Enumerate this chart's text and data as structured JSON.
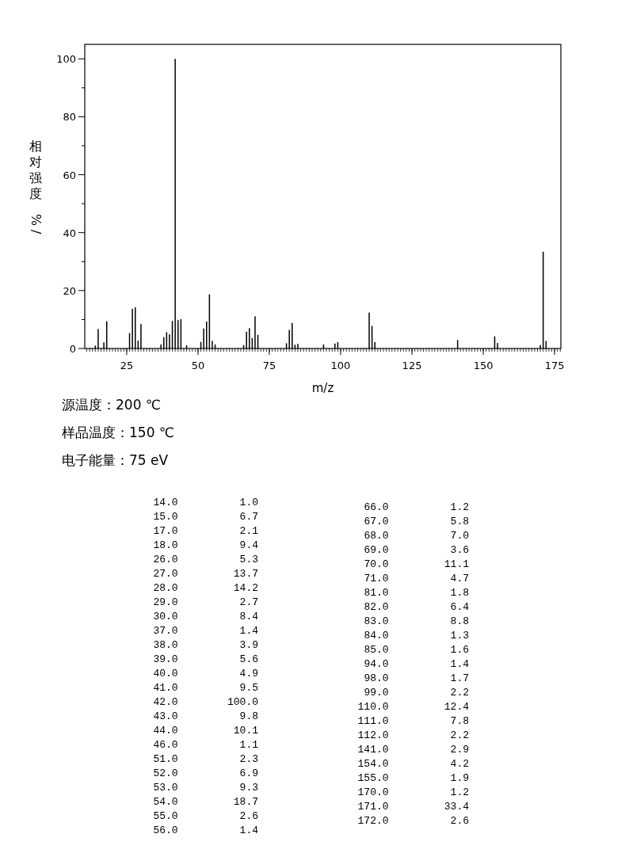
{
  "chart_data": {
    "type": "bar",
    "xlabel": "m/z",
    "ylabel": "相对强度%/",
    "color": "#000000",
    "x": [
      14,
      15,
      17,
      18,
      26,
      27,
      28,
      29,
      30,
      37,
      38,
      39,
      40,
      41,
      42,
      43,
      44,
      46,
      51,
      52,
      53,
      54,
      55,
      56,
      66,
      67,
      68,
      69,
      70,
      71,
      81,
      82,
      83,
      84,
      85,
      94,
      98,
      99,
      110,
      111,
      112,
      141,
      154,
      155,
      170,
      171,
      172
    ],
    "values": [
      1.0,
      6.7,
      2.1,
      9.4,
      5.3,
      13.7,
      14.2,
      2.7,
      8.4,
      1.4,
      3.9,
      5.6,
      4.9,
      9.5,
      100.0,
      9.8,
      10.1,
      1.1,
      2.3,
      6.9,
      9.3,
      18.7,
      2.6,
      1.4,
      1.2,
      5.8,
      7.0,
      3.6,
      11.1,
      4.7,
      1.8,
      6.4,
      8.8,
      1.3,
      1.6,
      1.4,
      1.7,
      2.2,
      12.4,
      7.8,
      2.2,
      2.9,
      4.2,
      1.9,
      1.2,
      33.4,
      2.6
    ],
    "xlim": [
      10.3,
      177.2
    ],
    "ylim": [
      0,
      105
    ],
    "xticks": [
      25,
      50,
      75,
      100,
      125,
      150,
      175
    ],
    "yticks": [
      0,
      20,
      40,
      60,
      80,
      100,
      {
        "value": 10,
        "label": null
      },
      {
        "value": 30,
        "label": null
      },
      {
        "value": 50,
        "label": null
      },
      {
        "value": 70,
        "label": null
      },
      {
        "value": 90,
        "label": null
      }
    ],
    "annotations": [
      "源温度：200 ℃",
      "样品温度：150 ℃",
      "电子能量：75 eV",
      "14.0          1.0",
      "15.0          6.7",
      "17.0          2.1",
      "18.0          9.4",
      "26.0          5.3",
      "27.0         13.7",
      "28.0         14.2",
      "29.0          2.7",
      "30.0          8.4",
      "37.0          1.4",
      "38.0          3.9",
      "39.0          5.6",
      "40.0          4.9",
      "41.0          9.5",
      "42.0        100.0",
      "43.0          9.8",
      "44.0         10.1",
      "46.0          1.1",
      "51.0          2.3",
      "52.0          6.9",
      "53.0          9.3",
      "54.0         18.7",
      "55.0          2.6",
      "56.0          1.4",
      "66.0          1.2",
      "67.0          5.8",
      "68.0          7.0",
      "69.0          3.6",
      "70.0         11.1",
      "71.0          4.7",
      "81.0          1.8",
      "82.0          6.4",
      "83.0          8.8",
      "84.0          1.3",
      "85.0          1.6",
      "94.0          1.4",
      "98.0          1.7",
      "99.0          2.2",
      "110.0         12.4",
      "111.0          7.8",
      "112.0          2.2",
      "141.0          2.9",
      "154.0          4.2",
      "155.0          1.9",
      "170.0          1.2",
      "171.0         33.4",
      "172.0          2.6"
    ]
  }
}
